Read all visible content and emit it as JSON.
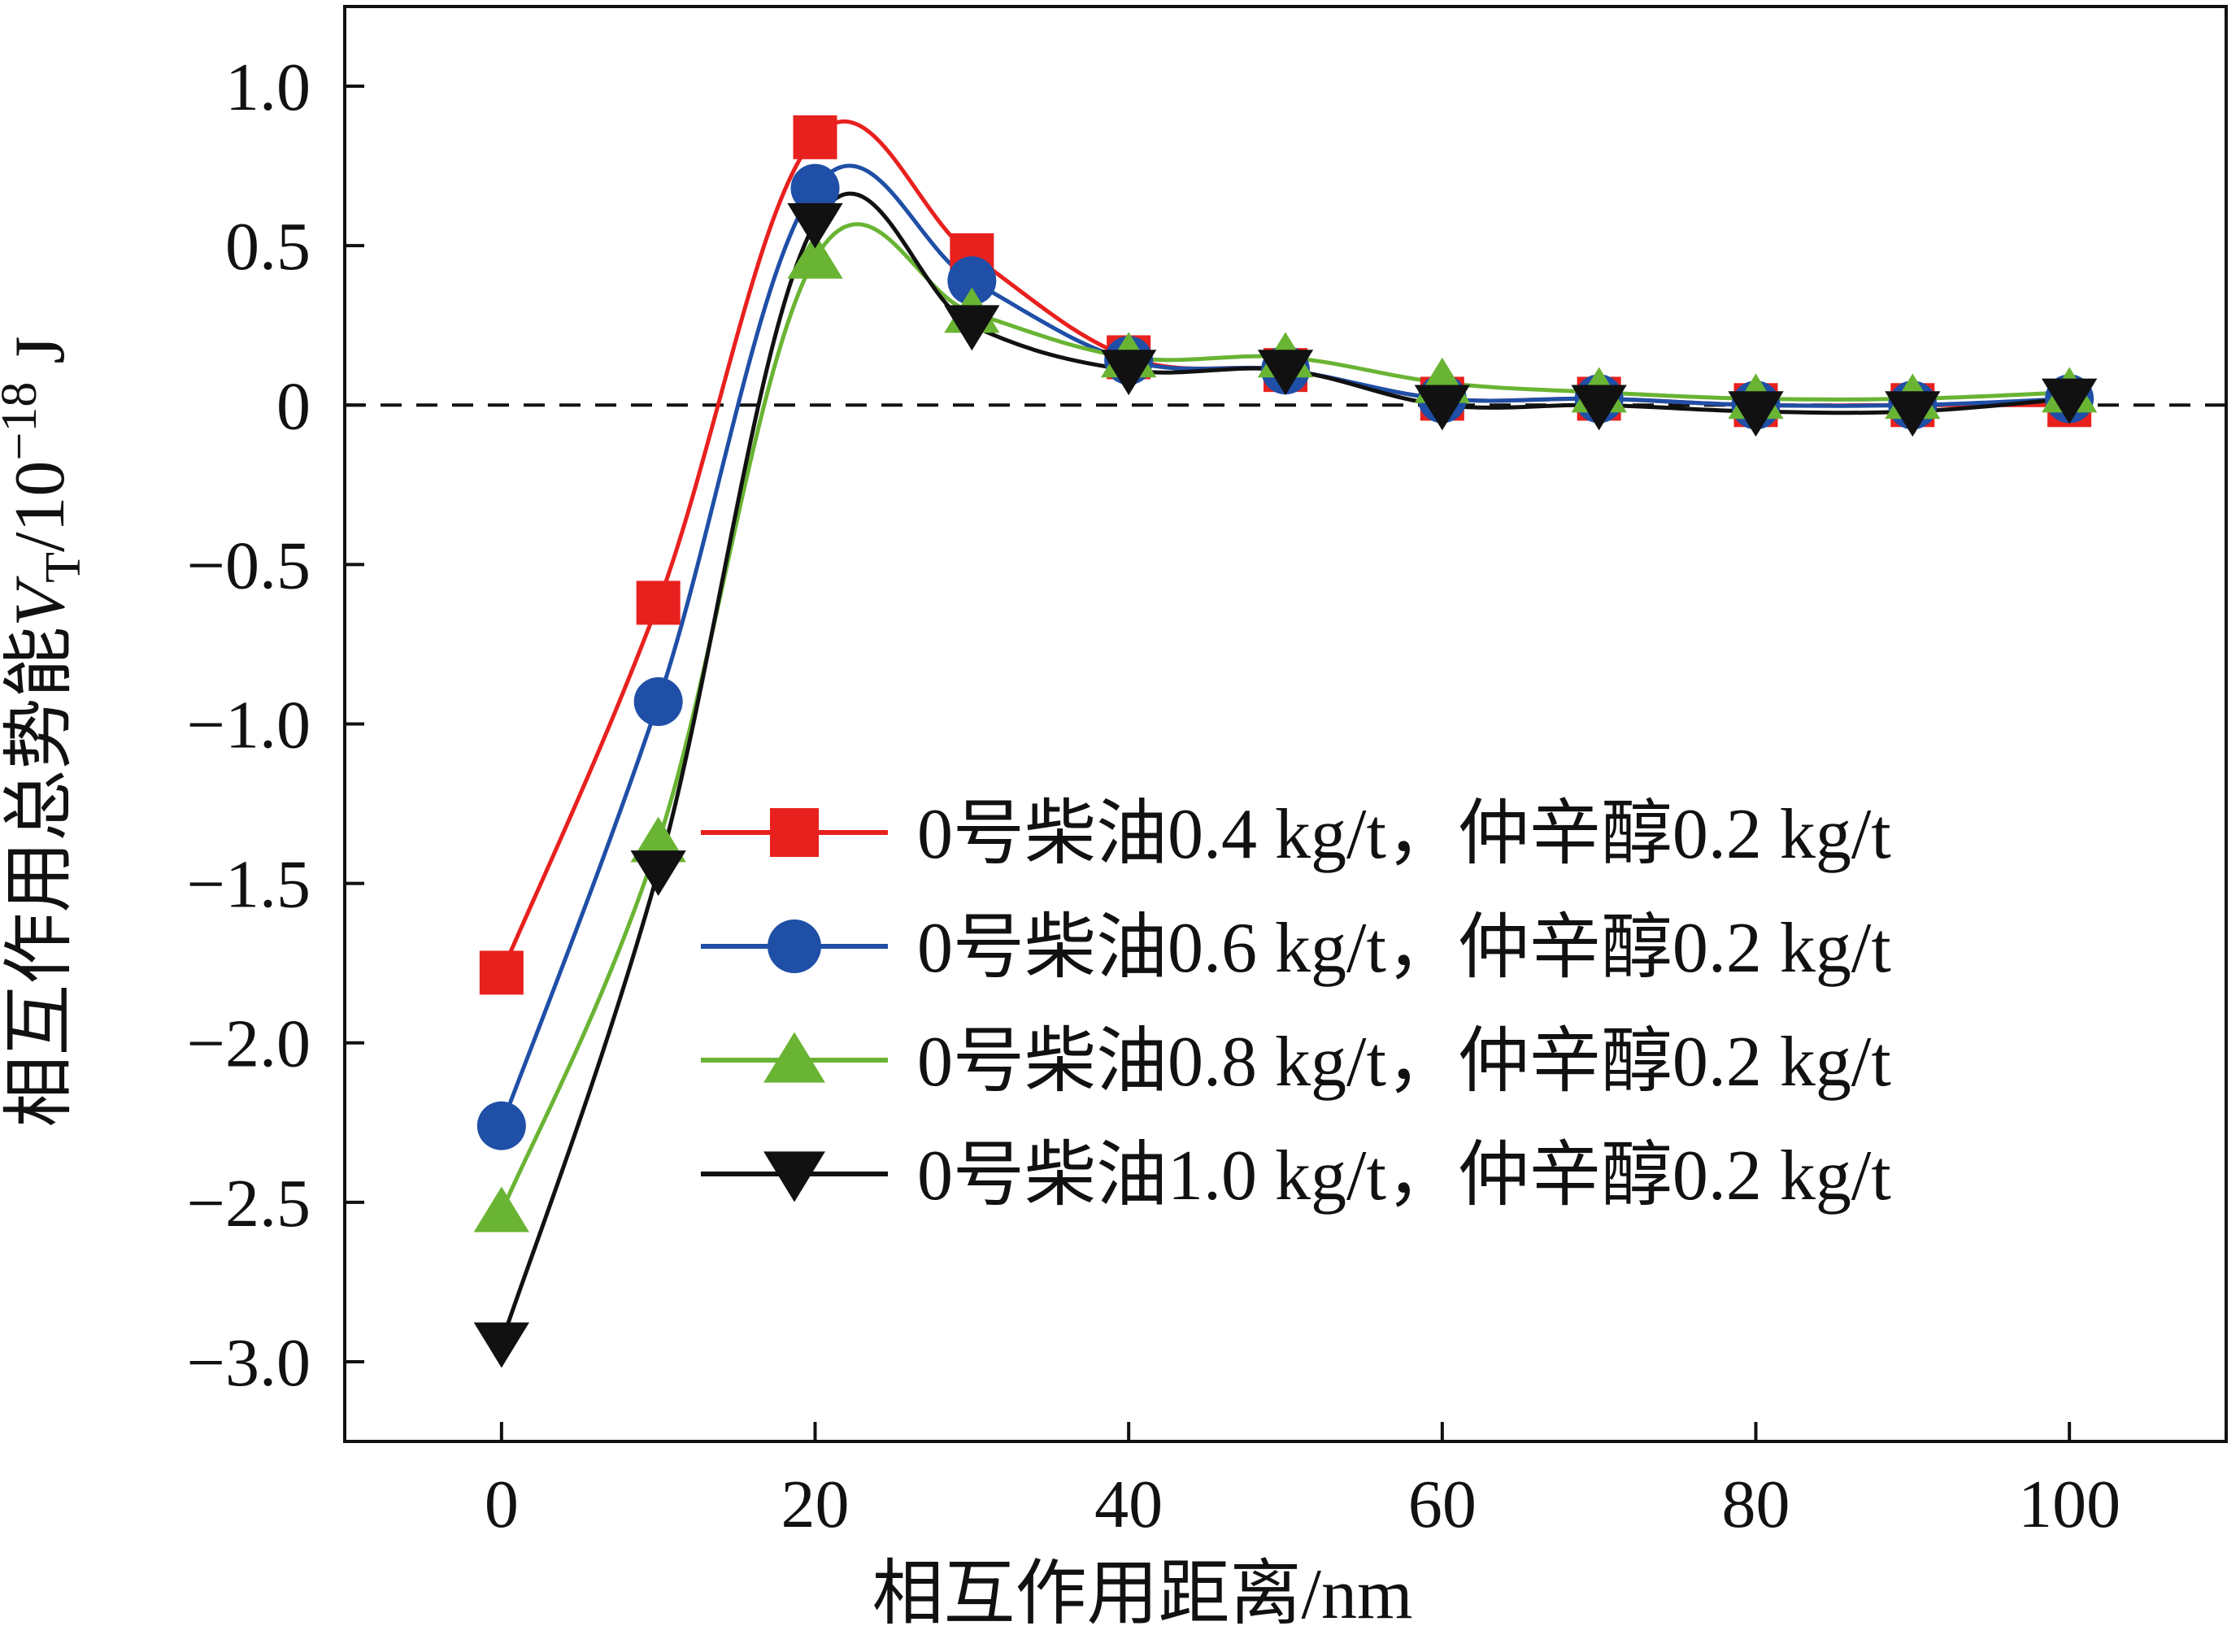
{
  "chart_data": {
    "type": "line",
    "xlabel": "相互作用距离/nm",
    "ylabel": {
      "prefix": "相互作用总势能",
      "var": "V",
      "sub": "T",
      "unit_pre": "/10",
      "exp": "−18",
      "unit_post": " J"
    },
    "xlim": [
      -10,
      110
    ],
    "ylim": [
      -3.25,
      1.25
    ],
    "xticks": [
      0,
      20,
      40,
      60,
      80,
      100
    ],
    "xtick_labels": [
      "0",
      "20",
      "40",
      "60",
      "80",
      "100"
    ],
    "yticks": [
      1.0,
      0.5,
      0,
      -0.5,
      -1.0,
      -1.5,
      -2.0,
      -2.5,
      -3.0
    ],
    "ytick_labels": [
      "1.0",
      "0.5",
      "0",
      "−0.5",
      "−1.0",
      "−1.5",
      "−2.0",
      "−2.5",
      "−3.0"
    ],
    "reference_line": {
      "y": 0,
      "style": "dashed"
    },
    "grid": false,
    "legend_position": "center-right",
    "x": [
      0,
      10,
      20,
      30,
      40,
      50,
      60,
      70,
      80,
      90,
      100
    ],
    "series": [
      {
        "name": "0号柴油0.4 kg/t，仲辛醇0.2 kg/t",
        "color": "#e8211e",
        "marker": "square",
        "values": [
          -1.78,
          -0.62,
          0.84,
          0.47,
          0.15,
          0.11,
          0.02,
          0.02,
          0.0,
          0.0,
          0.0
        ]
      },
      {
        "name": "0号柴油0.6 kg/t，仲辛醇0.2 kg/t",
        "color": "#1f4fa6",
        "marker": "circle",
        "values": [
          -2.26,
          -0.93,
          0.68,
          0.39,
          0.14,
          0.11,
          0.02,
          0.02,
          0.0,
          0.0,
          0.02
        ]
      },
      {
        "name": "0号柴油0.8 kg/t，仲辛醇0.2 kg/t",
        "color": "#6ab434",
        "marker": "triangle-up",
        "values": [
          -2.53,
          -1.37,
          0.46,
          0.29,
          0.15,
          0.15,
          0.07,
          0.04,
          0.02,
          0.02,
          0.04
        ]
      },
      {
        "name": "0号柴油1.0 kg/t，仲辛醇0.2 kg/t",
        "color": "#111111",
        "marker": "triangle-down",
        "values": [
          -2.94,
          -1.46,
          0.57,
          0.25,
          0.11,
          0.11,
          0.0,
          0.0,
          -0.02,
          -0.02,
          0.02
        ]
      }
    ]
  }
}
